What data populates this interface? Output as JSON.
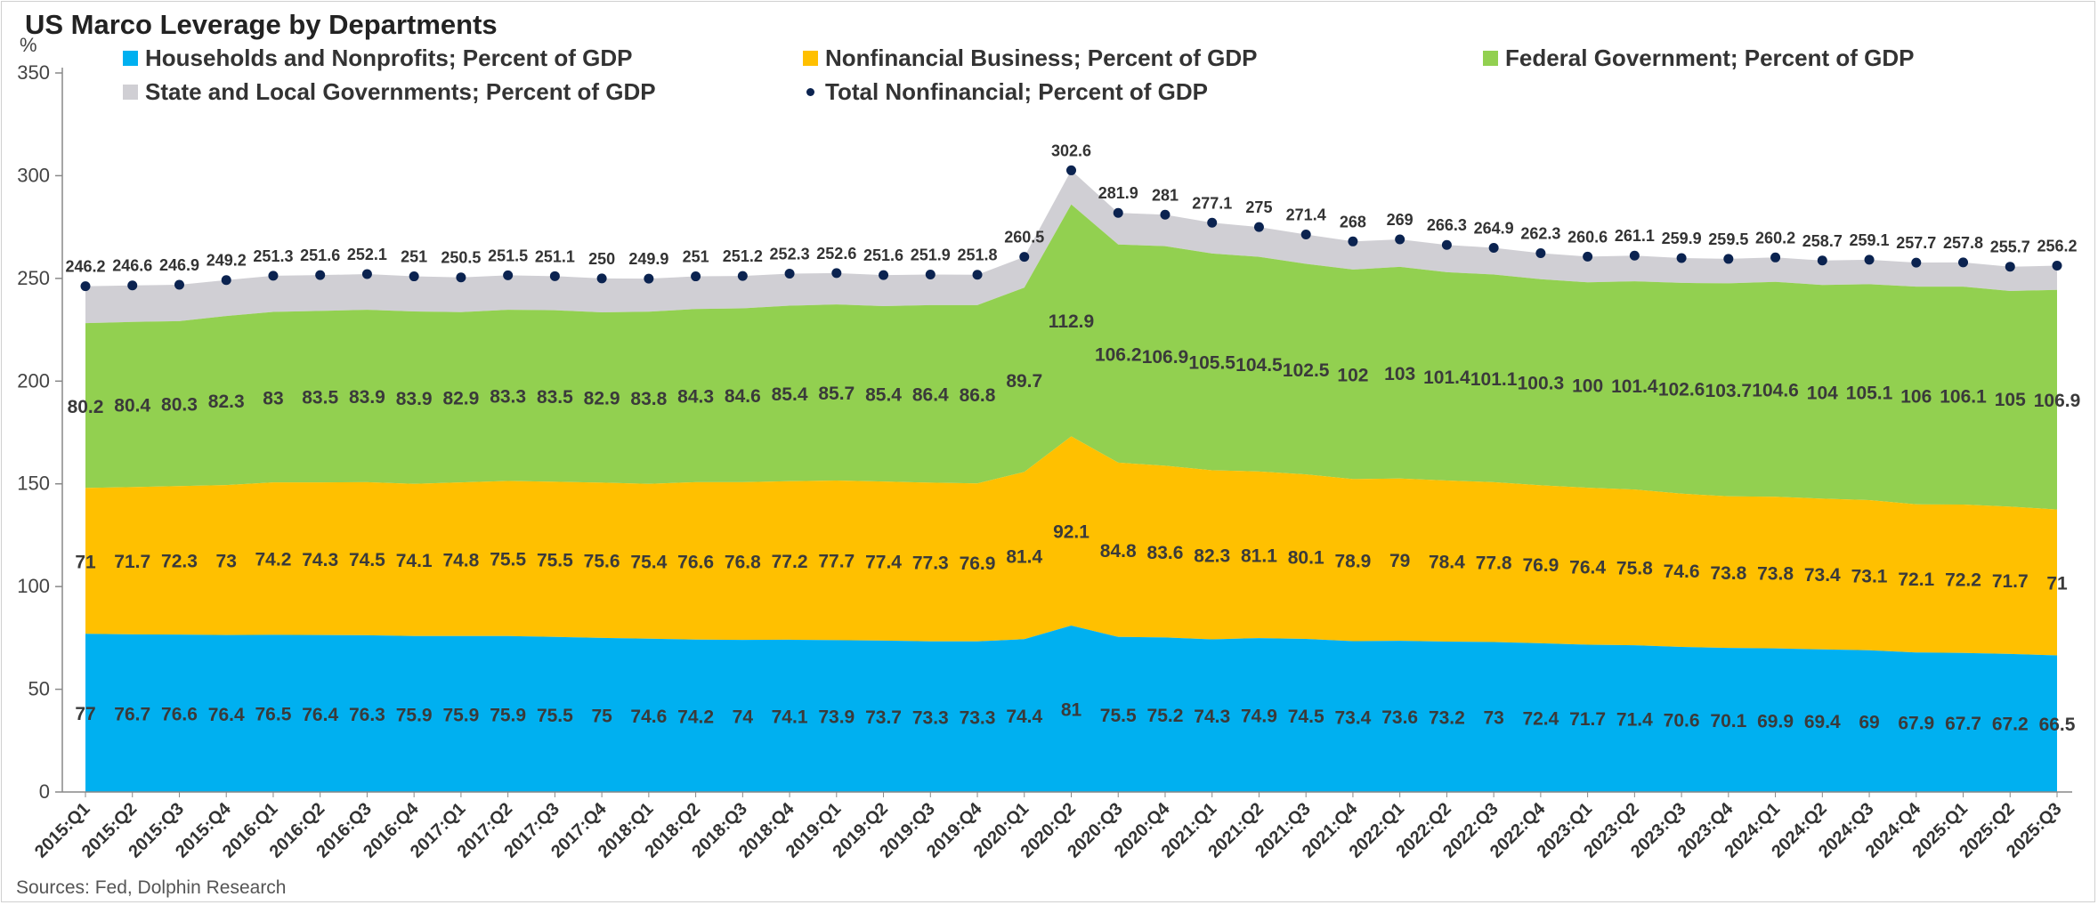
{
  "title": "US Marco Leverage by Departments",
  "source": "Sources:  Fed, Dolphin Research",
  "colors": {
    "households": "#00b0f0",
    "business": "#ffc000",
    "federal": "#92d050",
    "state_local": "#d0cfd4",
    "total": "#0b2350"
  },
  "chart_data": {
    "type": "area",
    "stacked": true,
    "ylabel": "%",
    "ylim": [
      0,
      350
    ],
    "yticks": [
      0,
      50,
      100,
      150,
      200,
      250,
      300,
      350
    ],
    "grid": false,
    "legend_position": "top",
    "categories": [
      "2015:Q1",
      "2015:Q2",
      "2015:Q3",
      "2015:Q4",
      "2016:Q1",
      "2016:Q2",
      "2016:Q3",
      "2016:Q4",
      "2017:Q1",
      "2017:Q2",
      "2017:Q3",
      "2017:Q4",
      "2018:Q1",
      "2018:Q2",
      "2018:Q3",
      "2018:Q4",
      "2019:Q1",
      "2019:Q2",
      "2019:Q3",
      "2019:Q4",
      "2020:Q1",
      "2020:Q2",
      "2020:Q3",
      "2020:Q4",
      "2021:Q1",
      "2021:Q2",
      "2021:Q3",
      "2021:Q4",
      "2022:Q1",
      "2022:Q2",
      "2022:Q3",
      "2022:Q4",
      "2023:Q1",
      "2023:Q2",
      "2023:Q3",
      "2023:Q4",
      "2024:Q1",
      "2024:Q2",
      "2024:Q3",
      "2024:Q4",
      "2025:Q1",
      "2025:Q2",
      "2025:Q3"
    ],
    "series": [
      {
        "name": "Households and Nonprofits; Percent of GDP",
        "key": "households",
        "values": [
          77,
          76.7,
          76.6,
          76.4,
          76.5,
          76.4,
          76.3,
          75.9,
          75.9,
          75.9,
          75.5,
          75,
          74.6,
          74.2,
          74,
          74.1,
          73.9,
          73.7,
          73.3,
          73.3,
          74.4,
          81,
          75.5,
          75.2,
          74.3,
          74.9,
          74.5,
          73.4,
          73.6,
          73.2,
          73,
          72.4,
          71.7,
          71.4,
          70.6,
          70.1,
          69.9,
          69.4,
          69,
          67.9,
          67.7,
          67.2,
          66.5
        ]
      },
      {
        "name": "Nonfinancial Business; Percent of GDP",
        "key": "business",
        "values": [
          71,
          71.7,
          72.3,
          73,
          74.2,
          74.3,
          74.5,
          74.1,
          74.8,
          75.5,
          75.5,
          75.6,
          75.4,
          76.6,
          76.8,
          77.2,
          77.7,
          77.4,
          77.3,
          76.9,
          81.4,
          92.1,
          84.8,
          83.6,
          82.3,
          81.1,
          80.1,
          78.9,
          79,
          78.4,
          77.8,
          76.9,
          76.4,
          75.8,
          74.6,
          73.8,
          73.8,
          73.4,
          73.1,
          72.1,
          72.2,
          71.7,
          71
        ]
      },
      {
        "name": "Federal Government; Percent of GDP",
        "key": "federal",
        "values": [
          80.2,
          80.4,
          80.3,
          82.3,
          83,
          83.5,
          83.9,
          83.9,
          82.9,
          83.3,
          83.5,
          82.9,
          83.8,
          84.3,
          84.6,
          85.4,
          85.7,
          85.4,
          86.4,
          86.8,
          89.7,
          112.9,
          106.2,
          106.9,
          105.5,
          104.5,
          102.5,
          102,
          103,
          101.4,
          101.1,
          100.3,
          100,
          101.4,
          102.6,
          103.7,
          104.6,
          104,
          105.1,
          106,
          106.1,
          105,
          106.9
        ]
      },
      {
        "name": "State and Local Governments; Percent of GDP",
        "key": "state_local"
      },
      {
        "name": "Total Nonfinancial; Percent of GDP",
        "key": "total",
        "values": [
          246.2,
          246.6,
          246.9,
          249.2,
          251.3,
          251.6,
          252.1,
          251,
          250.5,
          251.5,
          251.1,
          250,
          249.9,
          251,
          251.2,
          252.3,
          252.6,
          251.6,
          251.9,
          251.8,
          260.5,
          302.6,
          281.9,
          281,
          277.1,
          275,
          271.4,
          268,
          269,
          266.3,
          264.9,
          262.3,
          260.6,
          261.1,
          259.9,
          259.5,
          260.2,
          258.7,
          259.1,
          257.7,
          257.8,
          255.7,
          256.2
        ]
      }
    ]
  }
}
